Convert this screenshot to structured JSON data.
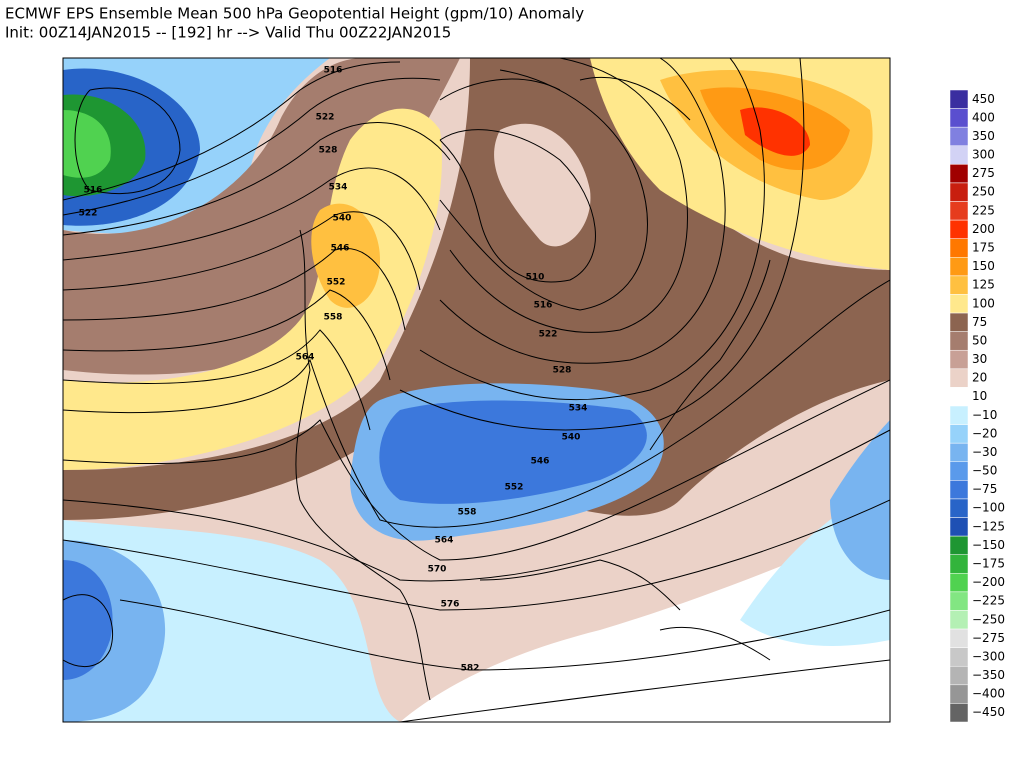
{
  "header": {
    "title": "ECMWF EPS Ensemble Mean 500 hPa Geopotential Height (gpm/10) Anomaly",
    "subtitle": "Init: 00Z14JAN2015 -- [192] hr --> Valid Thu 00Z22JAN2015"
  },
  "map": {
    "contour_labels": [
      "516",
      "522",
      "528",
      "534",
      "540",
      "546",
      "552",
      "558",
      "564",
      "516",
      "522",
      "510",
      "516",
      "522",
      "528",
      "534",
      "540",
      "546",
      "552",
      "558",
      "564",
      "570",
      "576",
      "582"
    ]
  },
  "colorbar": {
    "levels": [
      {
        "label": "450",
        "color": "#3a2ea0"
      },
      {
        "label": "400",
        "color": "#5a4fcf"
      },
      {
        "label": "350",
        "color": "#8080e0"
      },
      {
        "label": "300",
        "color": "#d2d2f5"
      },
      {
        "label": "275",
        "color": "#a00000"
      },
      {
        "label": "250",
        "color": "#c81e0f"
      },
      {
        "label": "225",
        "color": "#e63c1e"
      },
      {
        "label": "200",
        "color": "#ff3200"
      },
      {
        "label": "175",
        "color": "#ff7800"
      },
      {
        "label": "150",
        "color": "#ff9a14"
      },
      {
        "label": "125",
        "color": "#ffc040"
      },
      {
        "label": "100",
        "color": "#ffe88c"
      },
      {
        "label": "75",
        "color": "#8c6450"
      },
      {
        "label": "50",
        "color": "#a57d6e"
      },
      {
        "label": "30",
        "color": "#c8a096"
      },
      {
        "label": "20",
        "color": "#ebd2c8"
      },
      {
        "label": "10",
        "color": "#ffffff"
      },
      {
        "label": "−10",
        "color": "#c8f0ff"
      },
      {
        "label": "−20",
        "color": "#96d2fa"
      },
      {
        "label": "−30",
        "color": "#78b4f0"
      },
      {
        "label": "−50",
        "color": "#5a9aeb"
      },
      {
        "label": "−75",
        "color": "#3c78dc"
      },
      {
        "label": "−100",
        "color": "#2864c8"
      },
      {
        "label": "−125",
        "color": "#1e50b4"
      },
      {
        "label": "−150",
        "color": "#1e9632"
      },
      {
        "label": "−175",
        "color": "#32b43c"
      },
      {
        "label": "−200",
        "color": "#50d250"
      },
      {
        "label": "−225",
        "color": "#82e682"
      },
      {
        "label": "−250",
        "color": "#b4f0b4"
      },
      {
        "label": "−275",
        "color": "#e1e1e1"
      },
      {
        "label": "−300",
        "color": "#c8c8c8"
      },
      {
        "label": "−350",
        "color": "#b4b4b4"
      },
      {
        "label": "−400",
        "color": "#969696"
      },
      {
        "label": "−450",
        "color": "#646464"
      }
    ]
  }
}
